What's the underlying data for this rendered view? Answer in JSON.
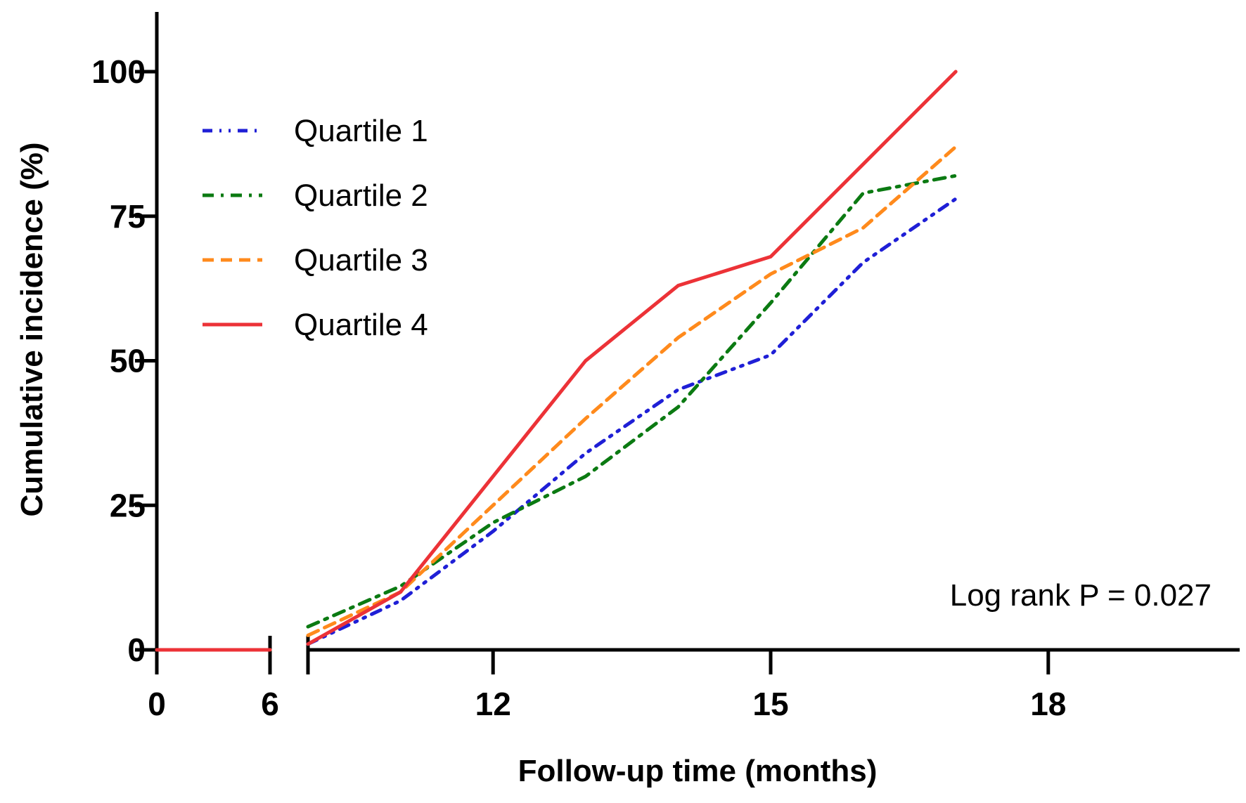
{
  "chart_data": {
    "type": "line",
    "title": "",
    "xlabel": "Follow-up time (months)",
    "ylabel": "Cumulative incidence (%)",
    "xlim": [
      0,
      21
    ],
    "x_axis_break": [
      6,
      10
    ],
    "ylim": [
      0,
      100
    ],
    "xticks": [
      0,
      6,
      12,
      15,
      18
    ],
    "yticks": [
      0,
      25,
      50,
      75,
      100
    ],
    "grid": false,
    "legend_position": "top-left",
    "annotation": "Log rank P = 0.027",
    "series": [
      {
        "name": "Quartile 1",
        "color": "#1f1fd6",
        "style": "dash-dot-dot",
        "x": [
          0,
          6,
          10,
          11,
          12,
          13,
          14,
          15,
          16,
          17
        ],
        "y": [
          0,
          0,
          1,
          8.5,
          20.5,
          34,
          45,
          51,
          67,
          78
        ]
      },
      {
        "name": "Quartile 2",
        "color": "#0b7a12",
        "style": "dash-dot",
        "x": [
          0,
          6,
          10,
          11,
          12,
          13,
          14,
          15,
          16,
          17
        ],
        "y": [
          0,
          0,
          4,
          11,
          22,
          30,
          42,
          60,
          79,
          82
        ]
      },
      {
        "name": "Quartile 3",
        "color": "#ff8a1c",
        "style": "dashed",
        "x": [
          0,
          6,
          10,
          11,
          12,
          13,
          14,
          15,
          16,
          17
        ],
        "y": [
          0,
          0,
          2.5,
          10,
          25,
          40,
          54,
          65,
          73,
          87
        ]
      },
      {
        "name": "Quartile 4",
        "color": "#ec3237",
        "style": "solid",
        "x": [
          0,
          6,
          10,
          11,
          12,
          13,
          14,
          15,
          16,
          17
        ],
        "y": [
          0,
          0,
          1,
          10,
          30,
          50,
          63,
          68,
          84,
          100
        ]
      }
    ]
  }
}
